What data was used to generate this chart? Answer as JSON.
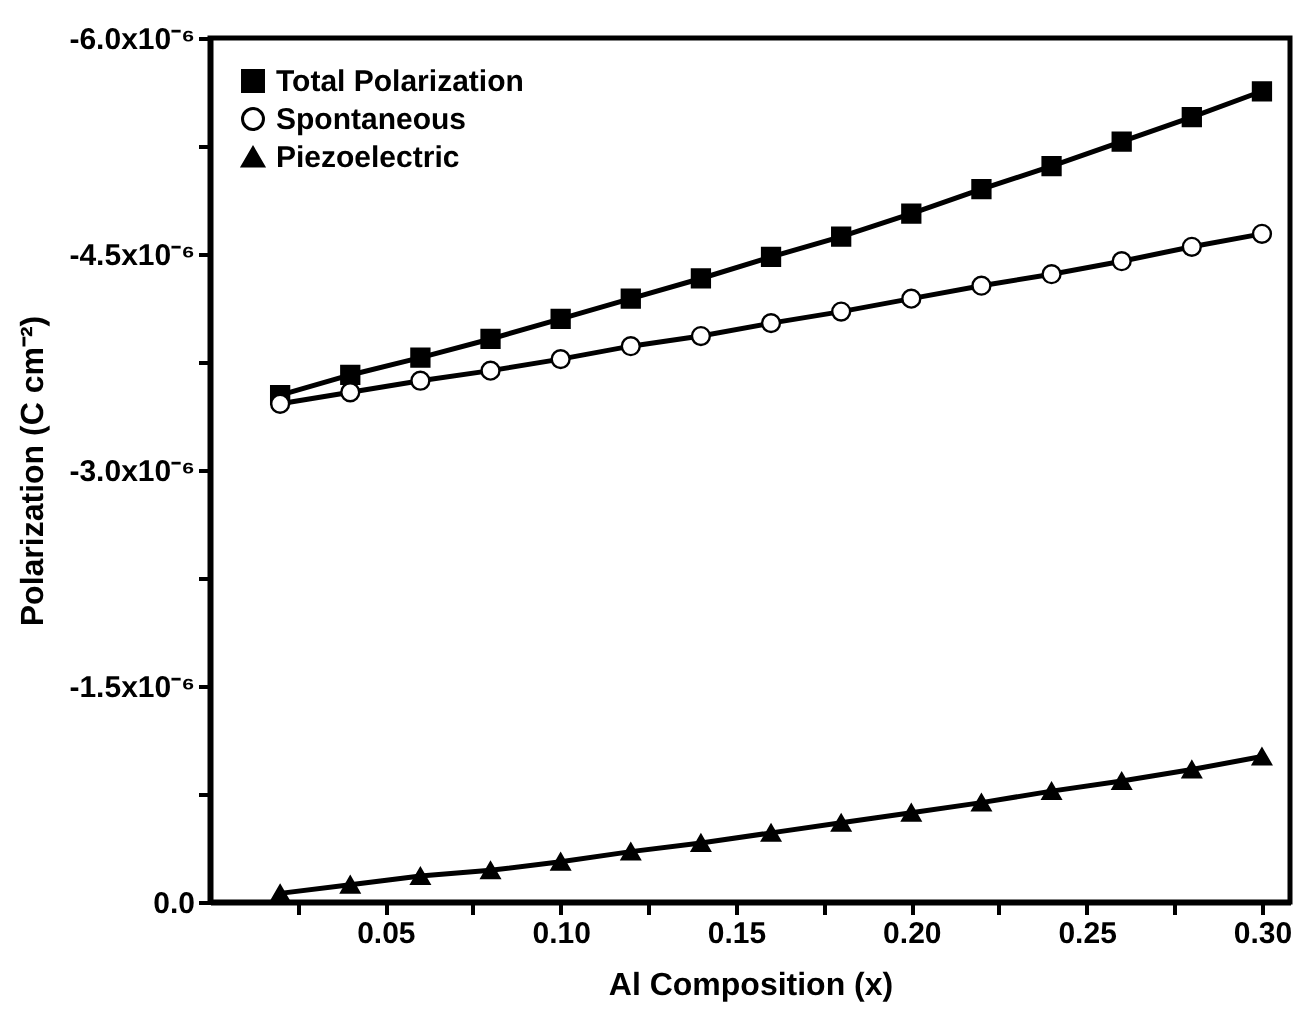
{
  "chart_data": {
    "type": "line",
    "xlabel": "Al Composition (x)",
    "ylabel": "Polarization (C cm⁻²)",
    "x": [
      0.02,
      0.04,
      0.06,
      0.08,
      0.1,
      0.12,
      0.14,
      0.16,
      0.18,
      0.2,
      0.22,
      0.24,
      0.26,
      0.28,
      0.3
    ],
    "series": [
      {
        "name": "Total Polarization",
        "color": "#000000",
        "marker": "square",
        "values": [
          -3.52e-06,
          -3.66e-06,
          -3.78e-06,
          -3.91e-06,
          -4.05e-06,
          -4.19e-06,
          -4.33e-06,
          -4.48e-06,
          -4.62e-06,
          -4.78e-06,
          -4.95e-06,
          -5.11e-06,
          -5.28e-06,
          -5.45e-06,
          -5.63e-06
        ]
      },
      {
        "name": "Spontaneous",
        "color": "#000000",
        "marker": "circle",
        "values": [
          -3.46e-06,
          -3.54e-06,
          -3.62e-06,
          -3.69e-06,
          -3.77e-06,
          -3.86e-06,
          -3.93e-06,
          -4.02e-06,
          -4.1e-06,
          -4.19e-06,
          -4.28e-06,
          -4.36e-06,
          -4.45e-06,
          -4.55e-06,
          -4.64e-06
        ]
      },
      {
        "name": "Piezoelectric",
        "color": "#000000",
        "marker": "triangle",
        "values": [
          -6e-08,
          -1.2e-07,
          -1.8e-07,
          -2.2e-07,
          -2.8e-07,
          -3.5e-07,
          -4.1e-07,
          -4.8e-07,
          -5.5e-07,
          -6.2e-07,
          -6.9e-07,
          -7.7e-07,
          -8.4e-07,
          -9.2e-07,
          -1.01e-06
        ]
      }
    ],
    "xlim": [
      0.0,
      0.308
    ],
    "xticks": [
      {
        "value": 0.025,
        "label": null
      },
      0.05,
      {
        "value": 0.075,
        "label": null
      },
      {
        "value": 0.1,
        "label": "0.10"
      },
      {
        "value": 0.125,
        "label": null
      },
      0.15,
      {
        "value": 0.175,
        "label": null
      },
      {
        "value": 0.2,
        "label": "0.20"
      },
      {
        "value": 0.225,
        "label": null
      },
      0.25,
      {
        "value": 0.275,
        "label": null
      },
      {
        "value": 0.3,
        "label": "0.30"
      }
    ],
    "ylim": [
      0,
      -6e-06
    ],
    "yticks": [
      {
        "value": 0,
        "label": "0.0"
      },
      {
        "value": -7.5e-07,
        "label": null
      },
      {
        "value": -1.5e-06,
        "label": "-1.5x10⁻⁶"
      },
      {
        "value": -2.25e-06,
        "label": null
      },
      {
        "value": -3e-06,
        "label": "-3.0x10⁻⁶"
      },
      {
        "value": -3.75e-06,
        "label": null
      },
      {
        "value": -4.5e-06,
        "label": "-4.5x10⁻⁶"
      },
      {
        "value": -5.25e-06,
        "label": null
      },
      {
        "value": -6e-06,
        "label": "-6.0x10⁻⁶"
      }
    ],
    "grid": false,
    "legend": "top left",
    "line_style": "solid"
  }
}
